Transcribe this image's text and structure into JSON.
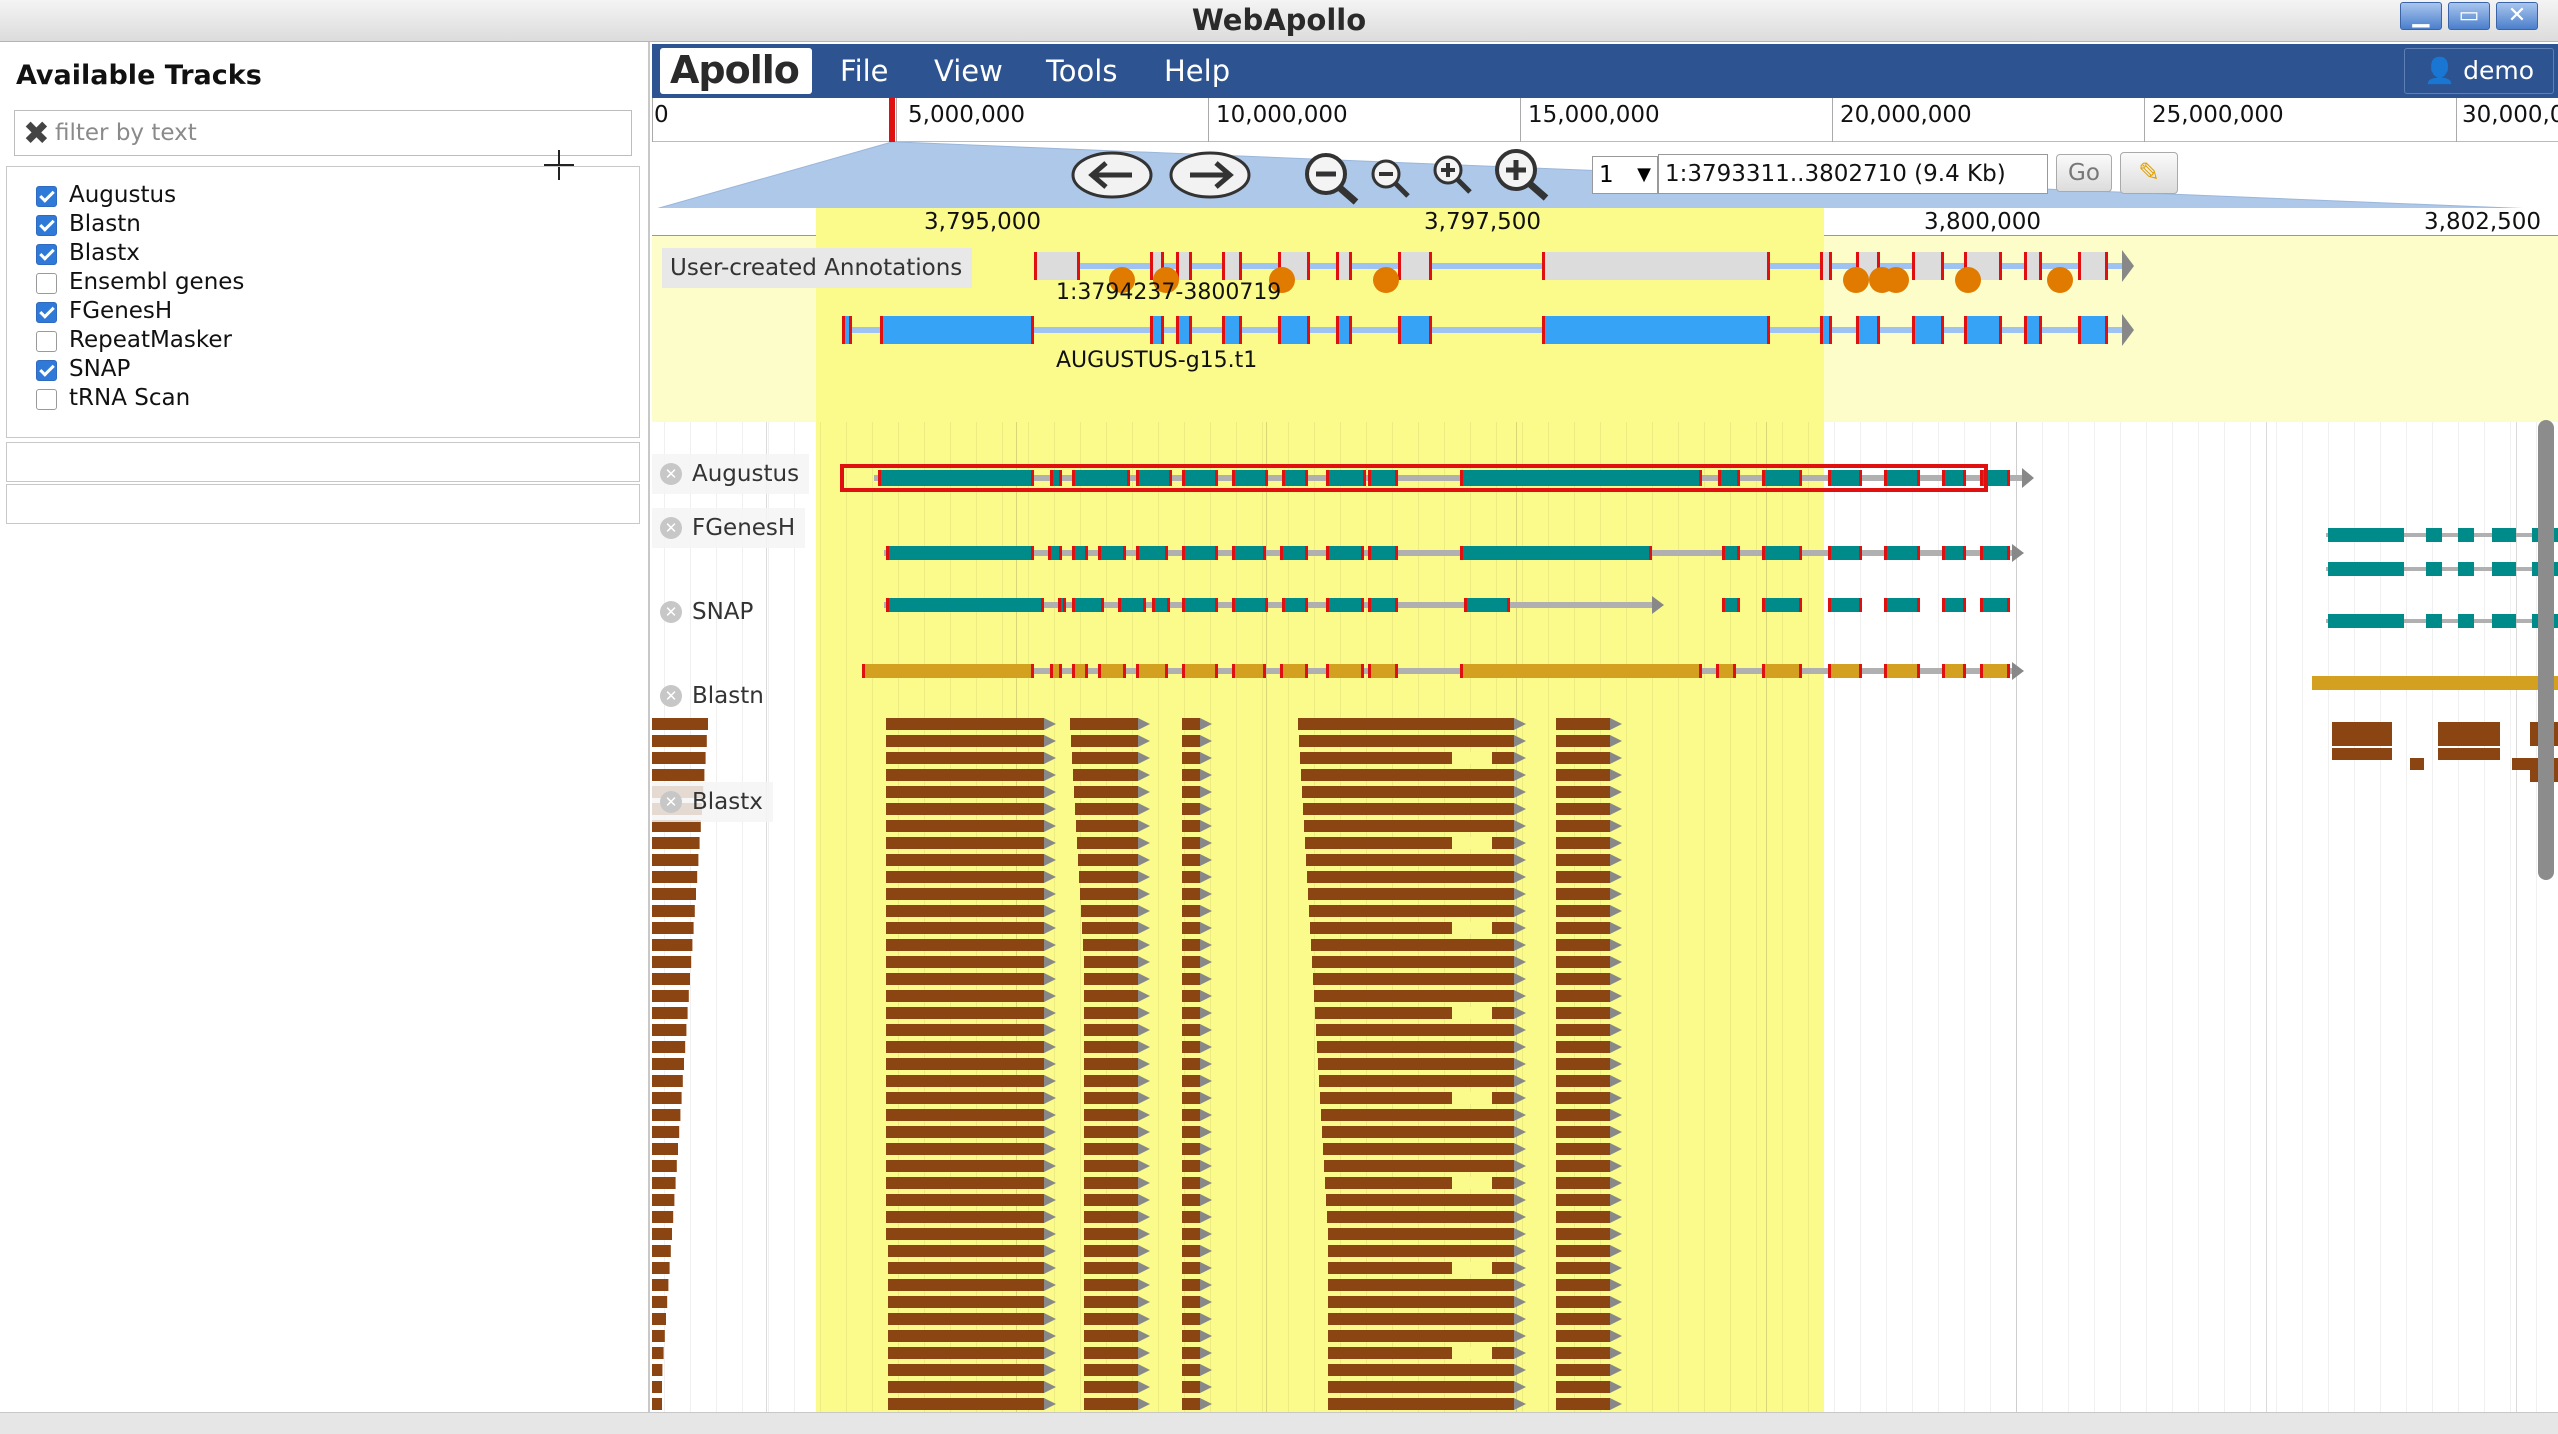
{
  "window": {
    "title": "WebApollo"
  },
  "left_panel": {
    "title": "Available Tracks",
    "filter_placeholder": "filter by text",
    "tracks": [
      {
        "label": "Augustus",
        "checked": true
      },
      {
        "label": "Blastn",
        "checked": true
      },
      {
        "label": "Blastx",
        "checked": true
      },
      {
        "label": "Ensembl genes",
        "checked": false
      },
      {
        "label": "FGenesH",
        "checked": true
      },
      {
        "label": "RepeatMasker",
        "checked": false
      },
      {
        "label": "SNAP",
        "checked": true
      },
      {
        "label": "tRNA Scan",
        "checked": false
      }
    ]
  },
  "menubar": {
    "logo": "Apollo",
    "file": "File",
    "view": "View",
    "tools": "Tools",
    "help": "Help",
    "user": "demo"
  },
  "overview_ruler": {
    "ticks": [
      "0",
      "5,000,000",
      "10,000,000",
      "15,000,000",
      "20,000,000",
      "25,000,000",
      "30,000,0"
    ]
  },
  "navigation": {
    "ref_sequence": "1",
    "location": "1:3793311..3802710 (9.4 Kb)",
    "go_label": "Go"
  },
  "detail_ruler": {
    "ticks": [
      "3,795,000",
      "3,797,500",
      "3,800,000",
      "3,802,500"
    ]
  },
  "tracks": {
    "annotations_label": "User-created Annotations",
    "annotation_feature_1": "1:3794237-3800719",
    "annotation_feature_2": "AUGUSTUS-g15.t1",
    "augustus": "Augustus",
    "fgenesh": "FGenesH",
    "snap": "SNAP",
    "blastn": "Blastn",
    "blastx": "Blastx"
  },
  "colors": {
    "menubar": "#2d5391",
    "highlight": "#fbfb8c",
    "annotation_exon": "#36a3f7",
    "gene_exon": "#008b8b",
    "blastn": "#d4a020",
    "blastx": "#8b4513",
    "splice": "#e01010"
  }
}
